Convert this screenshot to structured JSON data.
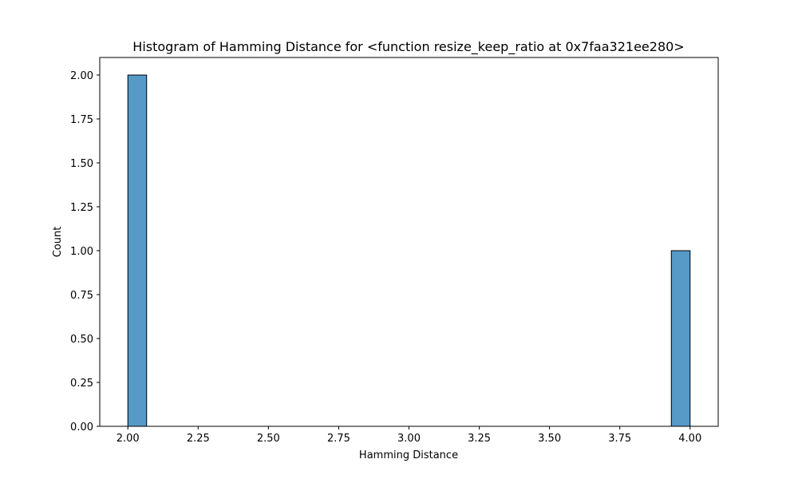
{
  "chart_data": {
    "type": "bar",
    "title": "Histogram of Hamming Distance for <function resize_keep_ratio at 0x7faa321ee280>",
    "xlabel": "Hamming Distance",
    "ylabel": "Count",
    "xlim": [
      1.9,
      4.1
    ],
    "ylim": [
      0,
      2.1
    ],
    "xticks": [
      "2.00",
      "2.25",
      "2.50",
      "2.75",
      "3.00",
      "3.25",
      "3.50",
      "3.75",
      "4.00"
    ],
    "yticks": [
      "0.00",
      "0.25",
      "0.50",
      "0.75",
      "1.00",
      "1.25",
      "1.50",
      "1.75",
      "2.00"
    ],
    "grid": false,
    "bins": [
      {
        "x0": 2.0,
        "x1": 2.0667,
        "count": 2
      },
      {
        "x0": 3.9333,
        "x1": 4.0,
        "count": 1
      }
    ],
    "bar_color": "#5799c7",
    "edge_color": "#000000"
  }
}
